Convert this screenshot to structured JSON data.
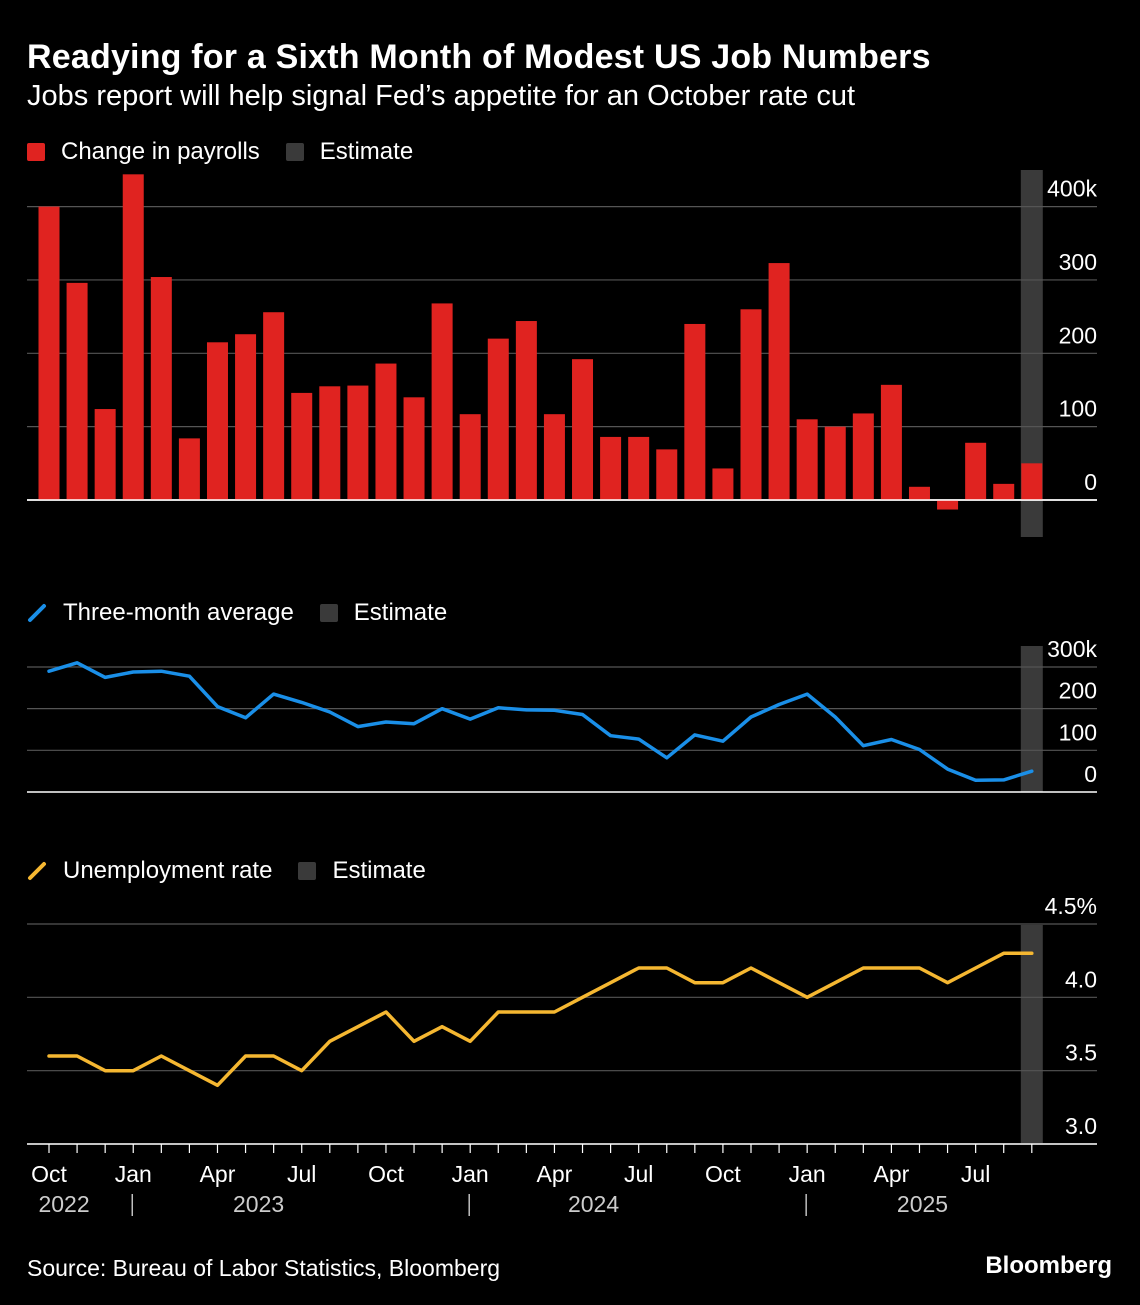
{
  "title": "Readying for a Sixth Month of Modest US Job Numbers",
  "subtitle": "Jobs report will help signal Fed’s appetite for an October rate cut",
  "source": "Source: Bureau of Labor Statistics, Bloomberg",
  "brand": "Bloomberg",
  "colors": {
    "background": "#000000",
    "payrolls": "#e02320",
    "average": "#1a8fe8",
    "unemployment": "#f5b731",
    "estimate": "#3a3a3a",
    "grid": "#555555",
    "text": "#ffffff"
  },
  "x_axis": {
    "tick_labels": [
      "Oct",
      "Jan",
      "Apr",
      "Jul",
      "Oct",
      "Jan",
      "Apr",
      "Jul",
      "Oct",
      "Jan",
      "Apr",
      "Jul"
    ],
    "year_labels": [
      "2022",
      "2023",
      "2024",
      "2025"
    ]
  },
  "chart_data": [
    {
      "type": "bar",
      "legend": [
        "Change in payrolls",
        "Estimate"
      ],
      "categories": [
        "2022-10",
        "2022-11",
        "2022-12",
        "2023-01",
        "2023-02",
        "2023-03",
        "2023-04",
        "2023-05",
        "2023-06",
        "2023-07",
        "2023-08",
        "2023-09",
        "2023-10",
        "2023-11",
        "2023-12",
        "2024-01",
        "2024-02",
        "2024-03",
        "2024-04",
        "2024-05",
        "2024-06",
        "2024-07",
        "2024-08",
        "2024-09",
        "2024-10",
        "2024-11",
        "2024-12",
        "2025-01",
        "2025-02",
        "2025-03",
        "2025-04",
        "2025-05",
        "2025-06",
        "2025-07",
        "2025-08",
        "2025-09"
      ],
      "series": [
        {
          "name": "Change in payrolls",
          "values": [
            400,
            296,
            124,
            444,
            304,
            84,
            215,
            226,
            256,
            146,
            155,
            156,
            186,
            140,
            268,
            117,
            220,
            244,
            117,
            192,
            86,
            86,
            69,
            240,
            43,
            260,
            323,
            110,
            100,
            118,
            157,
            18,
            -13,
            78,
            22,
            50
          ]
        }
      ],
      "estimate_month": "2025-09",
      "ylim": [
        -50,
        420
      ],
      "yticks": [
        0,
        100,
        200,
        300,
        400
      ],
      "ytick_labels": [
        "0",
        "100",
        "200",
        "300",
        "400k"
      ],
      "grid": true
    },
    {
      "type": "line",
      "legend": [
        "Three-month average",
        "Estimate"
      ],
      "categories": [
        "2022-10",
        "2022-11",
        "2022-12",
        "2023-01",
        "2023-02",
        "2023-03",
        "2023-04",
        "2023-05",
        "2023-06",
        "2023-07",
        "2023-08",
        "2023-09",
        "2023-10",
        "2023-11",
        "2023-12",
        "2024-01",
        "2024-02",
        "2024-03",
        "2024-04",
        "2024-05",
        "2024-06",
        "2024-07",
        "2024-08",
        "2024-09",
        "2024-10",
        "2024-11",
        "2024-12",
        "2025-01",
        "2025-02",
        "2025-03",
        "2025-04",
        "2025-05",
        "2025-06",
        "2025-07",
        "2025-08",
        "2025-09"
      ],
      "series": [
        {
          "name": "Three-month average",
          "values": [
            290,
            310,
            275,
            288,
            290,
            278,
            205,
            178,
            235,
            215,
            192,
            157,
            168,
            164,
            200,
            175,
            202,
            197,
            196,
            186,
            135,
            127,
            82,
            137,
            122,
            180,
            210,
            235,
            180,
            111,
            126,
            102,
            55,
            28,
            29,
            50
          ]
        }
      ],
      "estimate_month": "2025-09",
      "ylim": [
        0,
        350
      ],
      "yticks": [
        0,
        100,
        200,
        300
      ],
      "ytick_labels": [
        "0",
        "100",
        "200",
        "300k"
      ],
      "grid": true
    },
    {
      "type": "line",
      "legend": [
        "Unemployment rate",
        "Estimate"
      ],
      "categories": [
        "2022-10",
        "2022-11",
        "2022-12",
        "2023-01",
        "2023-02",
        "2023-03",
        "2023-04",
        "2023-05",
        "2023-06",
        "2023-07",
        "2023-08",
        "2023-09",
        "2023-10",
        "2023-11",
        "2023-12",
        "2024-01",
        "2024-02",
        "2024-03",
        "2024-04",
        "2024-05",
        "2024-06",
        "2024-07",
        "2024-08",
        "2024-09",
        "2024-10",
        "2024-11",
        "2024-12",
        "2025-01",
        "2025-02",
        "2025-03",
        "2025-04",
        "2025-05",
        "2025-06",
        "2025-07",
        "2025-08",
        "2025-09"
      ],
      "series": [
        {
          "name": "Unemployment rate",
          "values": [
            3.6,
            3.6,
            3.5,
            3.5,
            3.6,
            3.5,
            3.4,
            3.6,
            3.6,
            3.5,
            3.7,
            3.8,
            3.9,
            3.7,
            3.8,
            3.7,
            3.9,
            3.9,
            3.9,
            4.0,
            4.1,
            4.2,
            4.2,
            4.1,
            4.1,
            4.2,
            4.1,
            4.0,
            4.1,
            4.2,
            4.2,
            4.2,
            4.1,
            4.2,
            4.3,
            4.3
          ]
        }
      ],
      "estimate_month": "2025-09",
      "ylim": [
        3.0,
        4.5
      ],
      "yticks": [
        3.0,
        3.5,
        4.0,
        4.5
      ],
      "ytick_labels": [
        "3.0",
        "3.5",
        "4.0",
        "4.5%"
      ],
      "grid": true
    }
  ]
}
